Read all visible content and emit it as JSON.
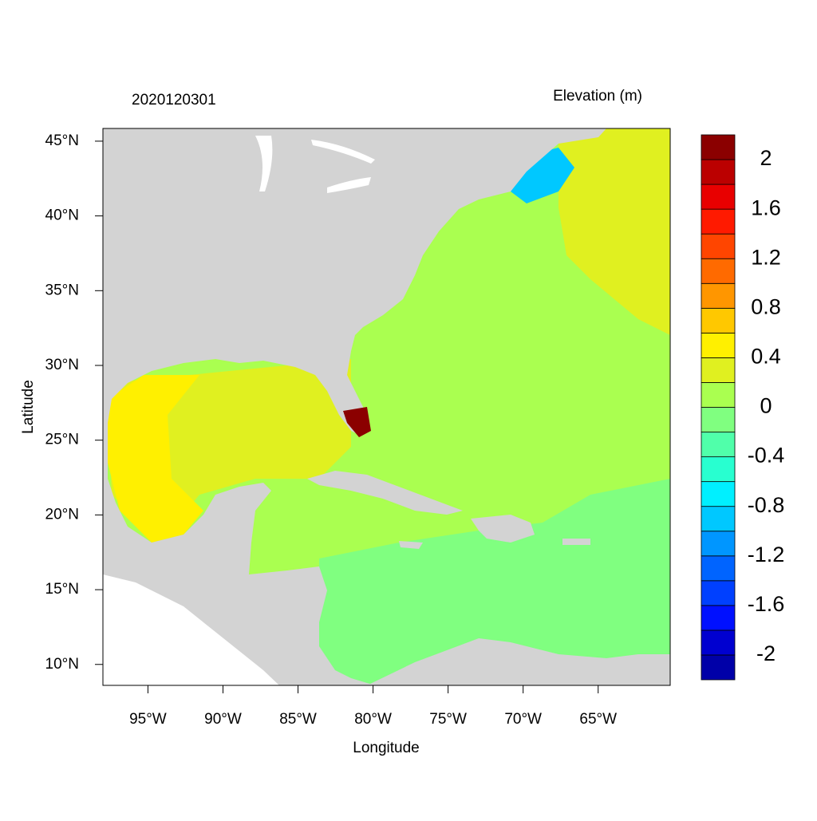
{
  "map": {
    "title_left": "2020120301",
    "title_right": "Elevation (m)",
    "xlabel": "Longitude",
    "ylabel": "Latitude",
    "xlim": [
      -98,
      -60.2
    ],
    "ylim": [
      8.6,
      45.85
    ],
    "xticks": [
      {
        "value": -95,
        "label": "95°W"
      },
      {
        "value": -90,
        "label": "90°W"
      },
      {
        "value": -85,
        "label": "85°W"
      },
      {
        "value": -80,
        "label": "80°W"
      },
      {
        "value": -75,
        "label": "75°W"
      },
      {
        "value": -70,
        "label": "70°W"
      },
      {
        "value": -65,
        "label": "65°W"
      }
    ],
    "yticks": [
      {
        "value": 10,
        "label": "10°N"
      },
      {
        "value": 15,
        "label": "15°N"
      },
      {
        "value": 20,
        "label": "20°N"
      },
      {
        "value": 25,
        "label": "25°N"
      },
      {
        "value": 30,
        "label": "30°N"
      },
      {
        "value": 35,
        "label": "35°N"
      },
      {
        "value": 40,
        "label": "40°N"
      },
      {
        "value": 45,
        "label": "45°N"
      }
    ]
  },
  "colorbar": {
    "levels": [
      -2.2,
      -2.0,
      -1.8,
      -1.6,
      -1.4,
      -1.2,
      -1.0,
      -0.8,
      -0.6,
      -0.4,
      -0.2,
      0,
      0.2,
      0.4,
      0.6,
      0.8,
      1.0,
      1.2,
      1.4,
      1.6,
      1.8,
      2.0,
      2.2
    ],
    "colors": [
      "#0000a8",
      "#0000d0",
      "#0010ff",
      "#0040ff",
      "#0064ff",
      "#0096ff",
      "#00c8ff",
      "#00f0ff",
      "#28ffd0",
      "#50ffaa",
      "#80ff80",
      "#aaff50",
      "#e0f020",
      "#fff000",
      "#ffc800",
      "#ff9600",
      "#ff6a00",
      "#ff4500",
      "#ff1a00",
      "#e80000",
      "#bb0000",
      "#8b0000"
    ],
    "ticks": [
      -2,
      -1.6,
      -1.2,
      -0.8,
      -0.4,
      0,
      0.4,
      0.8,
      1.2,
      1.6,
      2
    ]
  }
}
